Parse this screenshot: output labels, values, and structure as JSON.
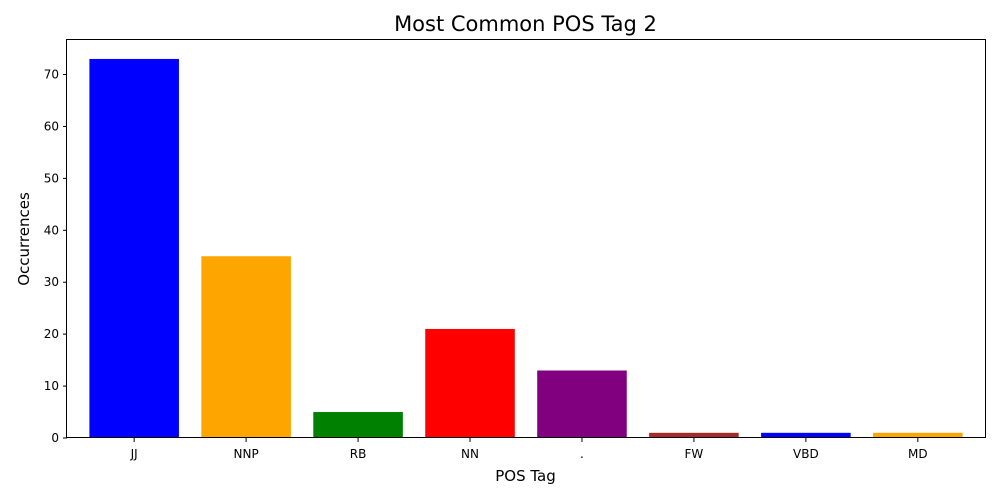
{
  "chart_data": {
    "type": "bar",
    "title": "Most Common POS Tag 2",
    "xlabel": "POS Tag",
    "ylabel": "Occurrences",
    "categories": [
      "JJ",
      "NNP",
      "RB",
      "NN",
      ".",
      "FW",
      "VBD",
      "MD"
    ],
    "values": [
      73,
      35,
      5,
      21,
      13,
      1,
      1,
      1
    ],
    "colors": [
      "#0000ff",
      "#ffa500",
      "#008000",
      "#ff0000",
      "#800080",
      "#a52a2a",
      "#0000ff",
      "#ffa500"
    ],
    "ylim": [
      0,
      76.65
    ],
    "yticks": [
      0,
      10,
      20,
      30,
      40,
      50,
      60,
      70
    ],
    "grid": false,
    "legend": "none"
  }
}
